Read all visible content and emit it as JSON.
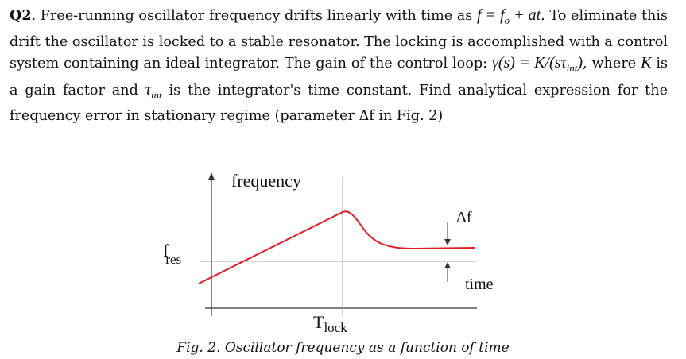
{
  "question": {
    "label": "Q2",
    "text1": ". Free-running oscillator frequency drifts linearly with time as ",
    "eq_drift": "f = f",
    "eq_drift_sub": "o",
    "eq_drift_rest": " + at",
    "text2": ". To eliminate this drift the oscillator is locked to a stable resonator. The locking is accomplished with a control system containing an ideal integrator. The gain of the control loop: ",
    "eq_gain": "γ(s) = K/",
    "eq_gain_paren_open": "(",
    "eq_gain_s": "sτ",
    "eq_gain_sub": "int",
    "eq_gain_paren_close": ")",
    "text3": ", where ",
    "var_K": "K",
    "text4": " is a gain factor and ",
    "var_tau": "τ",
    "var_tau_sub": "int",
    "text5": " is the integrator's time constant.   Find analytical expression for the frequency error in stationary regime (parameter Δf in Fig. 2)"
  },
  "figure": {
    "y_axis_label": "frequency",
    "x_axis_label": "time",
    "fres_label": "f",
    "fres_sub": "res",
    "tlock_label": "T",
    "tlock_sub": "lock",
    "delta_label": "Δf",
    "curve_color": "#e02020",
    "axis_color": "#333333",
    "guide_color": "#aaaaaa",
    "caption": "Fig. 2. Oscillator frequency as a function of time"
  }
}
